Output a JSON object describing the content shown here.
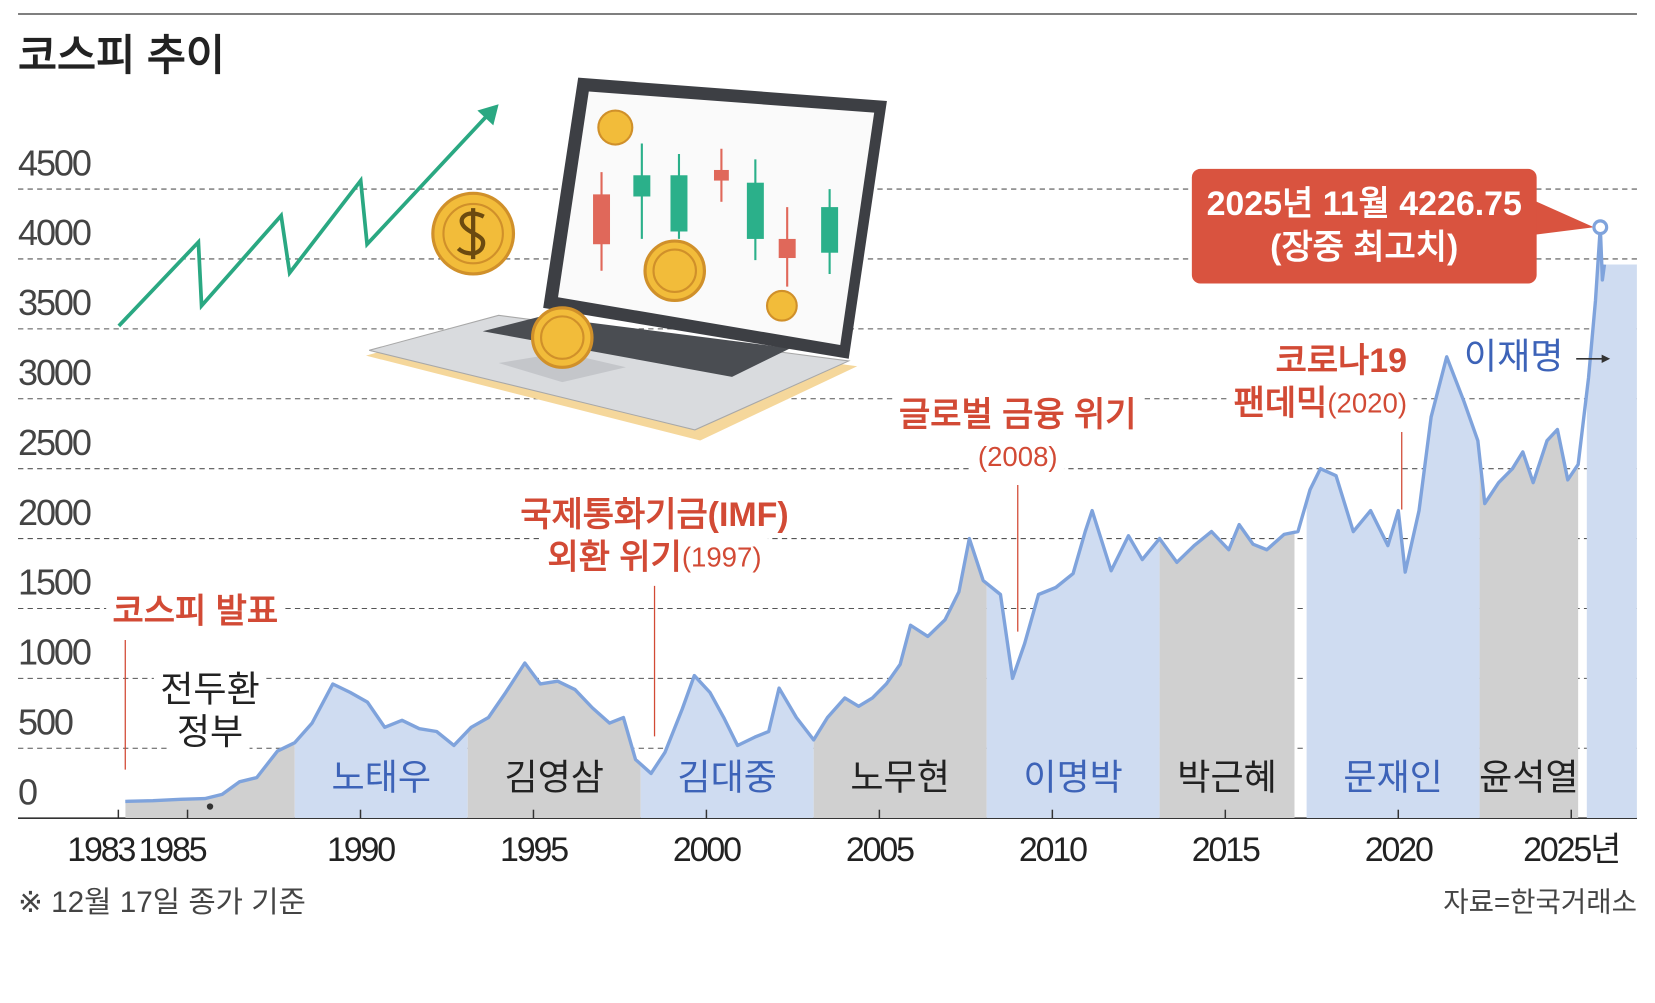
{
  "title": "코스피 추이",
  "chart_data": {
    "type": "line",
    "x": [
      1983.2,
      1984.0,
      1984.8,
      1985.5,
      1986.0,
      1986.5,
      1987.0,
      1987.6,
      1988.1,
      1988.6,
      1989.2,
      1989.7,
      1990.2,
      1990.7,
      1991.2,
      1991.7,
      1992.2,
      1992.7,
      1993.2,
      1993.7,
      1994.2,
      1994.75,
      1995.2,
      1995.7,
      1996.2,
      1996.7,
      1997.2,
      1997.6,
      1997.95,
      1998.4,
      1998.8,
      1999.3,
      1999.65,
      2000.1,
      2000.5,
      2000.9,
      2001.4,
      2001.8,
      2002.1,
      2002.6,
      2003.1,
      2003.5,
      2004.0,
      2004.4,
      2004.8,
      2005.2,
      2005.6,
      2005.9,
      2006.4,
      2006.9,
      2007.3,
      2007.6,
      2008.0,
      2008.5,
      2008.85,
      2009.2,
      2009.6,
      2010.1,
      2010.6,
      2010.95,
      2011.15,
      2011.7,
      2012.2,
      2012.6,
      2013.1,
      2013.6,
      2014.1,
      2014.6,
      2015.1,
      2015.4,
      2015.8,
      2016.2,
      2016.7,
      2017.1,
      2017.45,
      2017.75,
      2018.2,
      2018.7,
      2019.2,
      2019.7,
      2020.0,
      2020.2,
      2020.6,
      2020.95,
      2021.4,
      2021.9,
      2022.3,
      2022.5,
      2022.9,
      2023.3,
      2023.6,
      2023.9,
      2024.3,
      2024.6,
      2024.9,
      2025.2,
      2025.5,
      2025.7,
      2025.84,
      2025.9,
      2025.96
    ],
    "values": [
      120,
      125,
      135,
      140,
      170,
      260,
      290,
      480,
      540,
      680,
      960,
      900,
      830,
      650,
      700,
      640,
      620,
      520,
      650,
      720,
      900,
      1110,
      960,
      980,
      920,
      790,
      680,
      720,
      420,
      320,
      470,
      780,
      1020,
      900,
      720,
      520,
      580,
      620,
      930,
      720,
      560,
      720,
      860,
      800,
      860,
      960,
      1100,
      1380,
      1300,
      1420,
      1620,
      2000,
      1700,
      1600,
      1000,
      1250,
      1600,
      1650,
      1750,
      2050,
      2200,
      1770,
      2020,
      1850,
      2000,
      1830,
      1950,
      2050,
      1920,
      2100,
      1960,
      1920,
      2030,
      2050,
      2350,
      2500,
      2450,
      2050,
      2200,
      1950,
      2200,
      1760,
      2200,
      2870,
      3300,
      2980,
      2700,
      2250,
      2400,
      2500,
      2620,
      2400,
      2700,
      2780,
      2420,
      2530,
      3150,
      3700,
      4226.75,
      3850,
      3960
    ],
    "color": "#7fa3dc",
    "xlim": [
      1980.1,
      2026.9
    ],
    "xticks": [
      1983,
      1985,
      1990,
      1995,
      2000,
      2005,
      2010,
      2015,
      2020,
      {
        "value": 2025,
        "label": "2025년"
      }
    ],
    "ylim": [
      0,
      4500
    ],
    "yticks": [
      0,
      500,
      1000,
      1500,
      2000,
      2500,
      3000,
      3500,
      4000,
      4500
    ],
    "grid": true,
    "eras": [
      {
        "name": [
          "전두환",
          "정부"
        ],
        "start": 1983.2,
        "end": 1988.1,
        "color": "#d0d0d0",
        "label_color": "#222222"
      },
      {
        "name": [
          "노태우"
        ],
        "start": 1988.1,
        "end": 1993.1,
        "color": "#cfdcf1",
        "label_color": "#3d63b8"
      },
      {
        "name": [
          "김영삼"
        ],
        "start": 1993.1,
        "end": 1998.1,
        "color": "#d0d0d0",
        "label_color": "#222222"
      },
      {
        "name": [
          "김대중"
        ],
        "start": 1998.1,
        "end": 2003.1,
        "color": "#cfdcf1",
        "label_color": "#3d63b8"
      },
      {
        "name": [
          "노무현"
        ],
        "start": 2003.1,
        "end": 2008.1,
        "color": "#d0d0d0",
        "label_color": "#222222"
      },
      {
        "name": [
          "이명박"
        ],
        "start": 2008.1,
        "end": 2013.1,
        "color": "#cfdcf1",
        "label_color": "#3d63b8"
      },
      {
        "name": [
          "박근혜"
        ],
        "start": 2013.1,
        "end": 2017.0,
        "color": "#d0d0d0",
        "label_color": "#222222"
      },
      {
        "name": [
          "문재인"
        ],
        "start": 2017.35,
        "end": 2022.35,
        "color": "#cfdcf1",
        "label_color": "#3d63b8"
      },
      {
        "name": [
          "윤석열"
        ],
        "start": 2022.35,
        "end": 2025.2,
        "color": "#d0d0d0",
        "label_color": "#222222"
      },
      {
        "name": [
          "이재명"
        ],
        "start": 2025.45,
        "end": 2026.9,
        "color": "#cfdcf1",
        "label_color": "#3d63b8"
      }
    ],
    "events": [
      {
        "lines": [
          "코스피 발표"
        ],
        "x": 1983.2
      },
      {
        "lines": [
          "국제통화기금(IMF)",
          "외환 위기"
        ],
        "year": "(1997)",
        "x": 1998.5
      },
      {
        "lines": [
          "글로벌 금융 위기"
        ],
        "year": "(2008)",
        "x": 2009.0
      },
      {
        "lines": [
          "코로나19",
          "팬데믹"
        ],
        "year": "(2020)",
        "x": 2020.1
      }
    ],
    "peak": {
      "label": "2025년 11월 4226.75",
      "note": "(장중 최고치)"
    },
    "footnote": "※ 12월 17일 종가 기준",
    "source": "자료=한국거래소"
  }
}
